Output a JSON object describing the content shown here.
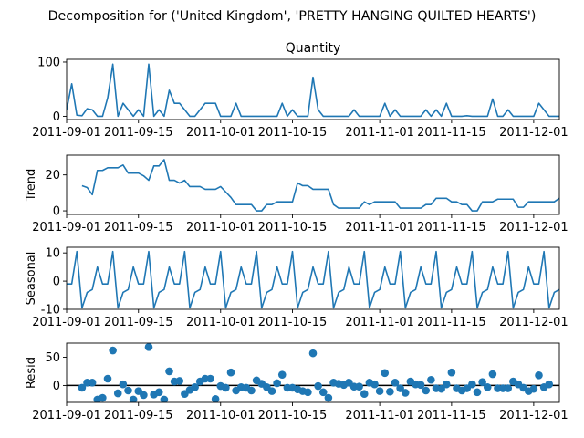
{
  "figure": {
    "suptitle": "Decomposition for ('United Kingdom', 'PRETTY HANGING QUILTED HEARTS')"
  },
  "colors": {
    "series": "#1f77b4",
    "zero_line": "#000000",
    "axes": "#000000"
  },
  "chart_data": [
    {
      "type": "line",
      "panel": "observed",
      "title": "Quantity",
      "ylabel": "",
      "xlim": [
        "2011-09-01",
        "2011-12-06"
      ],
      "ylim": [
        -6,
        105
      ],
      "yticks": [
        0,
        100
      ],
      "xticks": [
        "2011-09-01",
        "2011-09-15",
        "2011-10-01",
        "2011-10-15",
        "2011-11-01",
        "2011-11-15",
        "2011-12-01"
      ],
      "grid": false,
      "x_start": "2011-09-01",
      "values": [
        12,
        60,
        2,
        1,
        14,
        12,
        0,
        0,
        34,
        96,
        0,
        24,
        12,
        0,
        12,
        0,
        96,
        0,
        12,
        0,
        48,
        24,
        24,
        12,
        0,
        0,
        12,
        24,
        24,
        24,
        0,
        0,
        0,
        24,
        0,
        0,
        0,
        0,
        0,
        0,
        0,
        0,
        24,
        0,
        12,
        0,
        0,
        0,
        72,
        12,
        0,
        0,
        0,
        0,
        0,
        0,
        12,
        0,
        0,
        0,
        0,
        0,
        24,
        0,
        12,
        0,
        0,
        0,
        0,
        0,
        12,
        0,
        12,
        0,
        24,
        0,
        0,
        0,
        1,
        0,
        0,
        0,
        0,
        32,
        0,
        0,
        12,
        0,
        0,
        0,
        0,
        0,
        24,
        12,
        0,
        0,
        0,
        12
      ]
    },
    {
      "type": "line",
      "panel": "trend",
      "ylabel": "Trend",
      "xlim": [
        "2011-09-01",
        "2011-12-06"
      ],
      "ylim": [
        -2,
        31
      ],
      "yticks": [
        0,
        20
      ],
      "xticks": [
        "2011-09-01",
        "2011-09-15",
        "2011-10-01",
        "2011-10-15",
        "2011-11-01",
        "2011-11-15",
        "2011-12-01"
      ],
      "grid": false,
      "x_start": "2011-09-01",
      "values": [
        null,
        null,
        null,
        14,
        13,
        9,
        22.5,
        22.5,
        24,
        24,
        24,
        25.5,
        21,
        21,
        21,
        19.5,
        17,
        25,
        25,
        28.5,
        17,
        17,
        15.5,
        17,
        13.5,
        13.5,
        13.5,
        12,
        12,
        12,
        13.5,
        10.5,
        7.5,
        3.5,
        3.5,
        3.5,
        3.5,
        0,
        0,
        3.5,
        3.5,
        5,
        5,
        5,
        5,
        15.5,
        14,
        14,
        12,
        12,
        12,
        12,
        3.5,
        1.5,
        1.5,
        1.5,
        1.5,
        1.5,
        5,
        3.5,
        5,
        5,
        5,
        5,
        5,
        1.5,
        1.5,
        1.5,
        1.5,
        1.5,
        3.5,
        3.5,
        7,
        7,
        7,
        5,
        5,
        3.5,
        3.5,
        0,
        0,
        5,
        5,
        5,
        6.5,
        6.5,
        6.5,
        6.5,
        2,
        2,
        5,
        5,
        5,
        5,
        5,
        5,
        7,
        null
      ]
    },
    {
      "type": "line",
      "panel": "seasonal",
      "ylabel": "Seasonal",
      "xlim": [
        "2011-09-01",
        "2011-12-06"
      ],
      "ylim": [
        -10,
        12
      ],
      "yticks": [
        -10,
        0,
        10
      ],
      "xticks": [
        "2011-09-01",
        "2011-09-15",
        "2011-10-01",
        "2011-10-15",
        "2011-11-01",
        "2011-11-15",
        "2011-12-01"
      ],
      "grid": false,
      "x_start": "2011-09-01",
      "period": 7,
      "pattern": [
        -1,
        -1,
        10.5,
        -9.5,
        -4,
        -3,
        5
      ]
    },
    {
      "type": "scatter",
      "panel": "resid",
      "ylabel": "Resid",
      "xlim": [
        "2011-09-01",
        "2011-12-06"
      ],
      "ylim": [
        -30,
        75
      ],
      "yticks": [
        0,
        50
      ],
      "xticks": [
        "2011-09-01",
        "2011-09-15",
        "2011-10-01",
        "2011-10-15",
        "2011-11-01",
        "2011-11-15",
        "2011-12-01"
      ],
      "grid": false,
      "zero_line": 0,
      "x_start": "2011-09-01",
      "values": [
        null,
        null,
        null,
        -4,
        5,
        5,
        -25,
        -22,
        12,
        62,
        -14,
        2,
        -9,
        -25,
        -10,
        -17,
        68,
        -16,
        -12,
        -25,
        25,
        7,
        8,
        -15,
        -8,
        -3,
        7,
        12,
        12,
        -24,
        -1,
        -4,
        23,
        -9,
        -3,
        -4,
        -9,
        9,
        3,
        -3,
        -10,
        4,
        19,
        -4,
        -4,
        -7,
        -10,
        -12,
        57,
        -1,
        -12,
        -22,
        5,
        3,
        1,
        5,
        -2,
        -2,
        -15,
        5,
        2,
        -10,
        22,
        -11,
        5,
        -5,
        -13,
        7,
        2,
        1,
        -9,
        10,
        -5,
        -6,
        2,
        23,
        -5,
        -9,
        -5,
        2,
        -12,
        6,
        -3,
        20,
        -5,
        -5,
        -5,
        7,
        2,
        -4,
        -10,
        -6,
        18,
        -3,
        2,
        null,
        null,
        null
      ]
    }
  ]
}
